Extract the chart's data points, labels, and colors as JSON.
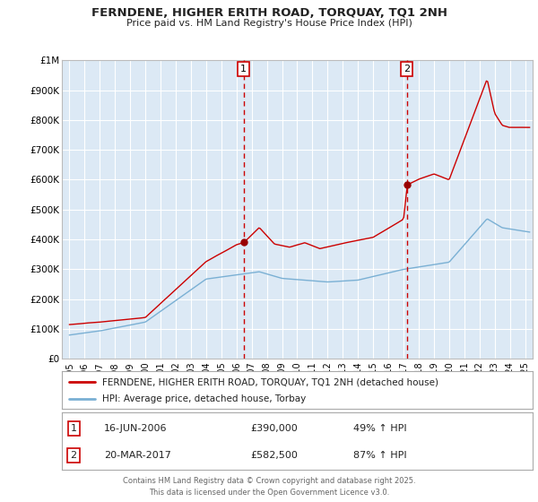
{
  "title": "FERNDENE, HIGHER ERITH ROAD, TORQUAY, TQ1 2NH",
  "subtitle": "Price paid vs. HM Land Registry's House Price Index (HPI)",
  "background_color": "#ffffff",
  "plot_bg_color": "#dce9f5",
  "grid_color": "#c8d8e8",
  "line1_color": "#cc0000",
  "line2_color": "#7ab0d4",
  "vline_color": "#cc0000",
  "vline1_x": 2006.46,
  "vline2_x": 2017.22,
  "marker1_y": 390000,
  "marker2_y": 582500,
  "legend_line1": "FERNDENE, HIGHER ERITH ROAD, TORQUAY, TQ1 2NH (detached house)",
  "legend_line2": "HPI: Average price, detached house, Torbay",
  "table_row1": [
    "1",
    "16-JUN-2006",
    "£390,000",
    "49% ↑ HPI"
  ],
  "table_row2": [
    "2",
    "20-MAR-2017",
    "£582,500",
    "87% ↑ HPI"
  ],
  "footer": "Contains HM Land Registry data © Crown copyright and database right 2025.\nThis data is licensed under the Open Government Licence v3.0.",
  "ylim": [
    0,
    1000000
  ],
  "yticks": [
    0,
    100000,
    200000,
    300000,
    400000,
    500000,
    600000,
    700000,
    800000,
    900000,
    1000000
  ],
  "ytick_labels": [
    "£0",
    "£100K",
    "£200K",
    "£300K",
    "£400K",
    "£500K",
    "£600K",
    "£700K",
    "£800K",
    "£900K",
    "£1M"
  ],
  "xlim": [
    1994.5,
    2025.5
  ],
  "xticks": [
    1995,
    1996,
    1997,
    1998,
    1999,
    2000,
    2001,
    2002,
    2003,
    2004,
    2005,
    2006,
    2007,
    2008,
    2009,
    2010,
    2011,
    2012,
    2013,
    2014,
    2015,
    2016,
    2017,
    2018,
    2019,
    2020,
    2021,
    2022,
    2023,
    2024,
    2025
  ]
}
